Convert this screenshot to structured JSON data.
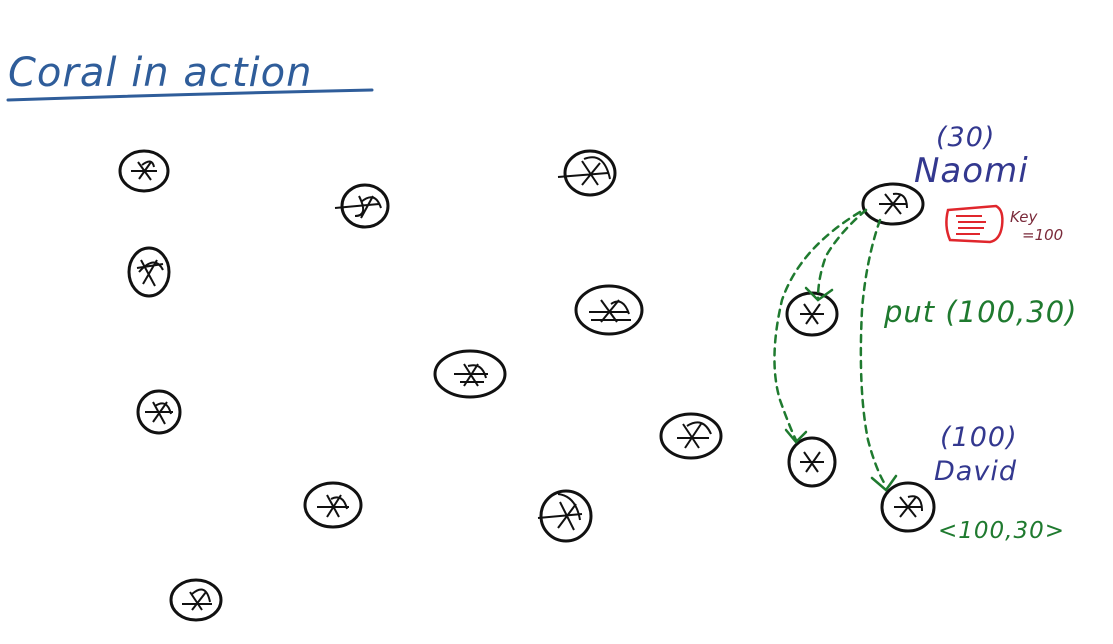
{
  "title": "Coral in action",
  "colors": {
    "ink": "#111111",
    "title": "#2f5d9a",
    "names": "#33388f",
    "put": "#1f7a2f",
    "key_box": "#e0262c",
    "key_text": "#7a2a3a"
  },
  "naomi": {
    "id_label": "(30)",
    "name": "Naomi"
  },
  "david": {
    "id_label": "(100)",
    "name": "David"
  },
  "key_label": {
    "line1": "Key",
    "line2": "=100"
  },
  "put_label": "put (100,30)",
  "stored_pair": "<100,30>"
}
